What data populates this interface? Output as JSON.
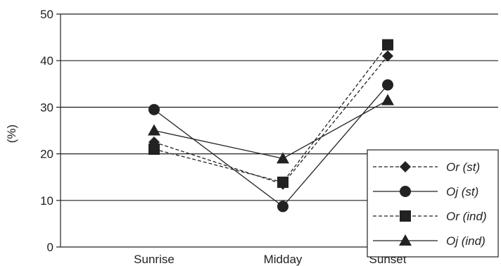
{
  "chart_data": {
    "type": "line",
    "title": "",
    "xlabel": "",
    "ylabel": "(%)",
    "categories": [
      "Sunrise",
      "Midday",
      "Sunset"
    ],
    "ylim": [
      0,
      50
    ],
    "yticks": [
      0,
      10,
      20,
      30,
      40,
      50
    ],
    "grid": "horizontal",
    "legend_position": "bottom-right",
    "series": [
      {
        "name": "Or (st)",
        "marker": "diamond",
        "dash": "dashed",
        "values": [
          22.5,
          13.5,
          41.0
        ]
      },
      {
        "name": "Oj (st)",
        "marker": "circle",
        "dash": "solid",
        "values": [
          29.5,
          8.7,
          34.8
        ]
      },
      {
        "name": "Or (ind)",
        "marker": "square",
        "dash": "dashed",
        "values": [
          21.0,
          13.9,
          43.4
        ]
      },
      {
        "name": "Oj (ind)",
        "marker": "triangle",
        "dash": "solid",
        "values": [
          25.0,
          19.0,
          31.5
        ]
      }
    ],
    "colors": {
      "line": "#222222",
      "grid": "#222222",
      "background": "#ffffff"
    }
  }
}
